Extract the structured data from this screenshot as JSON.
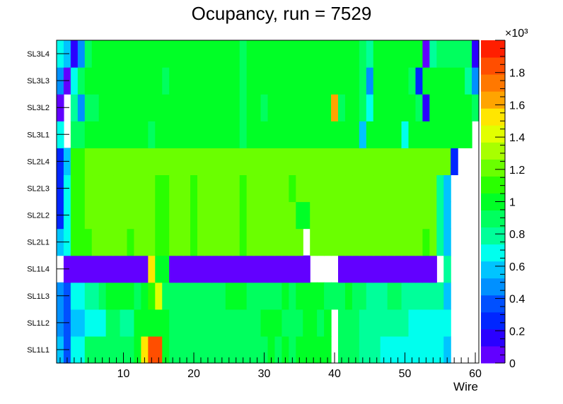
{
  "chart_data": {
    "type": "heatmap",
    "title": "Ocupancy, run = 7529",
    "xlabel": "Wire",
    "ylabel": "",
    "xlim": [
      0.5,
      60.5
    ],
    "x_ticks": [
      10,
      20,
      30,
      40,
      50,
      60
    ],
    "x_tick_labels": [
      "10",
      "20",
      "30",
      "40",
      "50",
      "60"
    ],
    "rows": [
      "SL1L1",
      "SL1L2",
      "SL1L3",
      "SL1L4",
      "SL2L1",
      "SL2L2",
      "SL2L3",
      "SL2L4",
      "SL3L1",
      "SL3L2",
      "SL3L3",
      "SL3L4"
    ],
    "colorbar": {
      "zlim": [
        0,
        2000
      ],
      "exponent_label": "×10³",
      "tick_values": [
        0,
        200,
        400,
        600,
        800,
        1000,
        1200,
        1400,
        1600,
        1800
      ],
      "tick_labels": [
        "0",
        "0.2",
        "0.4",
        "0.6",
        "0.8",
        "1",
        "1.2",
        "1.4",
        "1.6",
        "1.8"
      ],
      "colors": [
        "#6200ff",
        "#2a00ff",
        "#0026ff",
        "#0050ff",
        "#0090ff",
        "#00c4ff",
        "#00ffee",
        "#00ff9a",
        "#00ff5e",
        "#00ff26",
        "#2aff00",
        "#6aff00",
        "#a8ff00",
        "#e2ff00",
        "#ffe600",
        "#ffa400",
        "#ff7800",
        "#ff4e00",
        "#ff1e00"
      ]
    },
    "values": [
      [
        600,
        400,
        700,
        700,
        900,
        900,
        900,
        900,
        900,
        900,
        900,
        1000,
        1500,
        1800,
        1800,
        1000,
        900,
        900,
        900,
        900,
        900,
        900,
        900,
        900,
        900,
        900,
        900,
        900,
        900,
        900,
        1000,
        900,
        1000,
        900,
        1000,
        1000,
        1000,
        1000,
        1000,
        null,
        900,
        900,
        900,
        800,
        800,
        800,
        700,
        700,
        700,
        700,
        700,
        700,
        700,
        700,
        700,
        600,
        null,
        null,
        null,
        null
      ],
      [
        500,
        400,
        600,
        600,
        700,
        700,
        700,
        900,
        900,
        800,
        800,
        1000,
        1000,
        1000,
        1000,
        1000,
        900,
        900,
        900,
        900,
        900,
        900,
        900,
        900,
        900,
        900,
        900,
        900,
        900,
        1000,
        1000,
        1000,
        900,
        900,
        900,
        1000,
        1000,
        900,
        1000,
        null,
        900,
        900,
        900,
        800,
        800,
        800,
        800,
        800,
        800,
        800,
        700,
        700,
        700,
        700,
        700,
        700,
        null,
        null,
        null,
        null
      ],
      [
        500,
        400,
        700,
        700,
        800,
        800,
        900,
        1000,
        1000,
        1000,
        1000,
        900,
        1000,
        1100,
        1400,
        900,
        900,
        900,
        900,
        900,
        900,
        900,
        900,
        900,
        1000,
        1000,
        1000,
        900,
        900,
        900,
        900,
        900,
        1000,
        900,
        1000,
        1000,
        1000,
        1000,
        900,
        900,
        900,
        1000,
        900,
        900,
        800,
        800,
        800,
        900,
        900,
        800,
        800,
        800,
        800,
        800,
        800,
        600,
        null,
        null,
        null,
        null
      ],
      [
        null,
        100,
        100,
        100,
        100,
        100,
        100,
        100,
        100,
        100,
        100,
        100,
        100,
        1500,
        1000,
        1000,
        100,
        100,
        100,
        100,
        100,
        100,
        100,
        100,
        100,
        100,
        100,
        100,
        100,
        100,
        100,
        100,
        100,
        100,
        100,
        100,
        null,
        null,
        null,
        null,
        100,
        100,
        100,
        100,
        100,
        100,
        100,
        100,
        100,
        100,
        100,
        100,
        100,
        100,
        null,
        800,
        null,
        null,
        null,
        null
      ],
      [
        600,
        700,
        1100,
        1100,
        1100,
        1200,
        1200,
        1200,
        1200,
        1200,
        1100,
        1200,
        1200,
        1200,
        1100,
        1100,
        1200,
        1200,
        1200,
        1100,
        1200,
        1200,
        1200,
        1200,
        1200,
        1200,
        1100,
        1200,
        1200,
        1200,
        1200,
        1200,
        1200,
        1200,
        1200,
        null,
        1200,
        1200,
        1200,
        1200,
        1200,
        1200,
        1200,
        1200,
        1200,
        1200,
        1200,
        1200,
        1200,
        1200,
        1200,
        1200,
        1100,
        1200,
        800,
        600,
        null,
        null,
        null,
        null
      ],
      [
        300,
        700,
        1100,
        1100,
        1200,
        1200,
        1200,
        1200,
        1200,
        1200,
        1200,
        1200,
        1200,
        1200,
        1100,
        1100,
        1200,
        1200,
        1200,
        1100,
        1200,
        1200,
        1200,
        1200,
        1200,
        1200,
        1100,
        1200,
        1200,
        1200,
        1200,
        1200,
        1200,
        1200,
        1000,
        1000,
        1200,
        1200,
        1200,
        1200,
        1200,
        1200,
        1200,
        1200,
        1200,
        1200,
        1200,
        1200,
        1200,
        1200,
        1200,
        1200,
        1200,
        1200,
        800,
        600,
        null,
        null,
        null,
        null
      ],
      [
        300,
        700,
        1100,
        1100,
        1200,
        1200,
        1200,
        1200,
        1200,
        1200,
        1200,
        1200,
        1200,
        1200,
        1100,
        1100,
        1200,
        1200,
        1200,
        1100,
        1200,
        1200,
        1200,
        1200,
        1200,
        1200,
        1100,
        1200,
        1200,
        1200,
        1200,
        1200,
        1200,
        1100,
        1200,
        1200,
        1200,
        1200,
        1200,
        1200,
        1200,
        1200,
        1200,
        1200,
        1200,
        1200,
        1200,
        1200,
        1200,
        1200,
        1200,
        1200,
        1200,
        1200,
        800,
        600,
        null,
        null,
        null,
        null
      ],
      [
        300,
        600,
        1100,
        1100,
        1200,
        1200,
        1200,
        1200,
        1200,
        1200,
        1200,
        1200,
        1200,
        1200,
        1200,
        1200,
        1200,
        1200,
        1200,
        1200,
        1200,
        1200,
        1200,
        1200,
        1200,
        1200,
        1200,
        1200,
        1200,
        1200,
        1200,
        1200,
        1200,
        1200,
        1200,
        1200,
        1200,
        1200,
        1200,
        1200,
        1200,
        1200,
        1200,
        1200,
        1200,
        1200,
        1200,
        1200,
        1200,
        1200,
        1200,
        1200,
        1200,
        1200,
        1200,
        1200,
        300,
        null,
        null,
        null
      ],
      [
        700,
        null,
        900,
        900,
        1000,
        1000,
        1000,
        1000,
        1000,
        1000,
        1000,
        1000,
        1000,
        900,
        1000,
        1000,
        1000,
        1000,
        1000,
        1000,
        1000,
        1000,
        1000,
        1000,
        1000,
        1000,
        900,
        1000,
        1000,
        1000,
        1000,
        1000,
        1000,
        1000,
        1000,
        1000,
        1000,
        1000,
        1000,
        1000,
        1000,
        1000,
        1000,
        600,
        1000,
        1000,
        1000,
        1000,
        1000,
        700,
        1000,
        1000,
        1000,
        1000,
        1000,
        1000,
        1000,
        1000,
        1000,
        null
      ],
      [
        100,
        null,
        800,
        500,
        900,
        900,
        1000,
        1000,
        1000,
        1000,
        1000,
        1000,
        1000,
        1000,
        1000,
        1000,
        1000,
        1000,
        1000,
        1000,
        1000,
        1000,
        1000,
        1000,
        1000,
        1000,
        900,
        1000,
        1000,
        900,
        1000,
        1000,
        1000,
        1000,
        1000,
        1000,
        1000,
        1000,
        1000,
        1600,
        900,
        1000,
        1000,
        900,
        700,
        1000,
        1000,
        1000,
        1000,
        1000,
        1000,
        900,
        200,
        1000,
        1000,
        1000,
        1000,
        1000,
        1000,
        900
      ],
      [
        500,
        100,
        700,
        900,
        1000,
        1000,
        1000,
        1000,
        1000,
        1000,
        1000,
        1000,
        1000,
        1000,
        1000,
        900,
        1000,
        1000,
        1000,
        1000,
        1000,
        1000,
        1000,
        1000,
        1000,
        1000,
        900,
        1000,
        1000,
        1000,
        1000,
        1000,
        1000,
        1000,
        1000,
        1000,
        1000,
        1000,
        1000,
        1000,
        1000,
        1000,
        1000,
        900,
        500,
        1000,
        1000,
        1000,
        1000,
        1000,
        900,
        300,
        1000,
        1000,
        1000,
        1000,
        1000,
        1000,
        800,
        500
      ],
      [
        700,
        600,
        200,
        500,
        900,
        1000,
        1000,
        1000,
        1000,
        1000,
        1000,
        1000,
        1000,
        1000,
        1000,
        1000,
        1000,
        1000,
        1000,
        1000,
        1000,
        1000,
        1000,
        1000,
        1000,
        1000,
        900,
        1000,
        1000,
        1000,
        1000,
        1000,
        1000,
        1000,
        1000,
        1000,
        1000,
        1000,
        1000,
        1000,
        1000,
        1000,
        1000,
        900,
        800,
        1000,
        1000,
        1000,
        1000,
        1000,
        1000,
        1000,
        100,
        800,
        900,
        900,
        900,
        900,
        900,
        200
      ]
    ]
  }
}
